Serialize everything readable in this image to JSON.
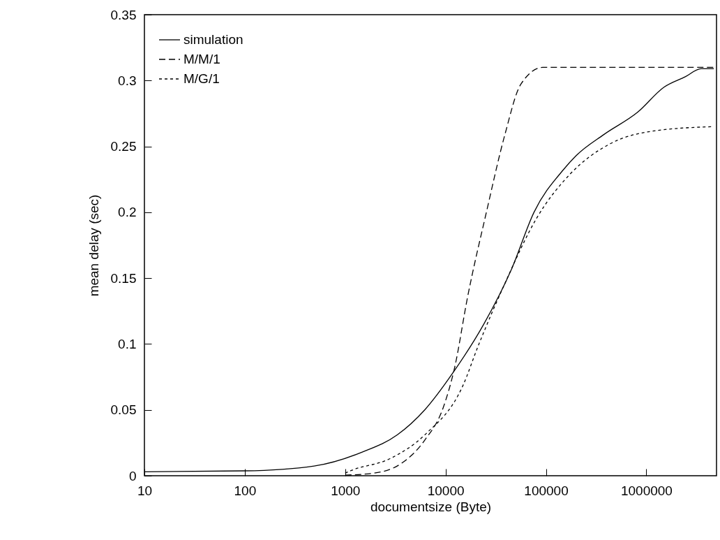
{
  "chart_data": {
    "type": "line",
    "xlabel": "documentsize (Byte)",
    "ylabel": "mean delay (sec)",
    "log": "x",
    "xlim": [
      10,
      5000000
    ],
    "xticks": [
      10,
      100,
      1000,
      10000,
      100000,
      1000000
    ],
    "ylim": [
      0,
      0.35
    ],
    "yticks": [
      0,
      0.05,
      0.1,
      0.15,
      0.2,
      0.25,
      0.3,
      0.35
    ],
    "grid": false,
    "legend": "top left",
    "series": [
      {
        "name": "simulation",
        "color": "#000000",
        "line_style": "solid",
        "x": [
          10,
          100,
          490,
          1480,
          3300,
          6200,
          11800,
          24000,
          45500,
          76000,
          148000,
          200000,
          377000,
          820000,
          1500000,
          2460000,
          3500000,
          4700000
        ],
        "values": [
          0.003,
          0.0037,
          0.0074,
          0.018,
          0.031,
          0.05,
          0.078,
          0.115,
          0.157,
          0.2,
          0.232,
          0.243,
          0.259,
          0.276,
          0.295,
          0.303,
          0.309,
          0.309
        ]
      },
      {
        "name": "M/M/1",
        "color": "#000000",
        "line_style": "dashed",
        "x": [
          1000,
          1950,
          3650,
          6200,
          9500,
          12300,
          16600,
          25500,
          39000,
          56000,
          93000,
          300000,
          1000000,
          4700000
        ],
        "values": [
          0.0005,
          0.002,
          0.0095,
          0.027,
          0.052,
          0.082,
          0.136,
          0.2,
          0.259,
          0.297,
          0.31,
          0.31,
          0.31,
          0.31
        ]
      },
      {
        "name": "M/G/1",
        "color": "#000000",
        "line_style": "dotted",
        "x": [
          1000,
          1150,
          2800,
          6200,
          15000,
          21000,
          39000,
          80000,
          174000,
          436000,
          1260000,
          4700000
        ],
        "values": [
          0.002,
          0.004,
          0.013,
          0.031,
          0.069,
          0.098,
          0.146,
          0.195,
          0.229,
          0.252,
          0.262,
          0.265
        ]
      }
    ]
  }
}
